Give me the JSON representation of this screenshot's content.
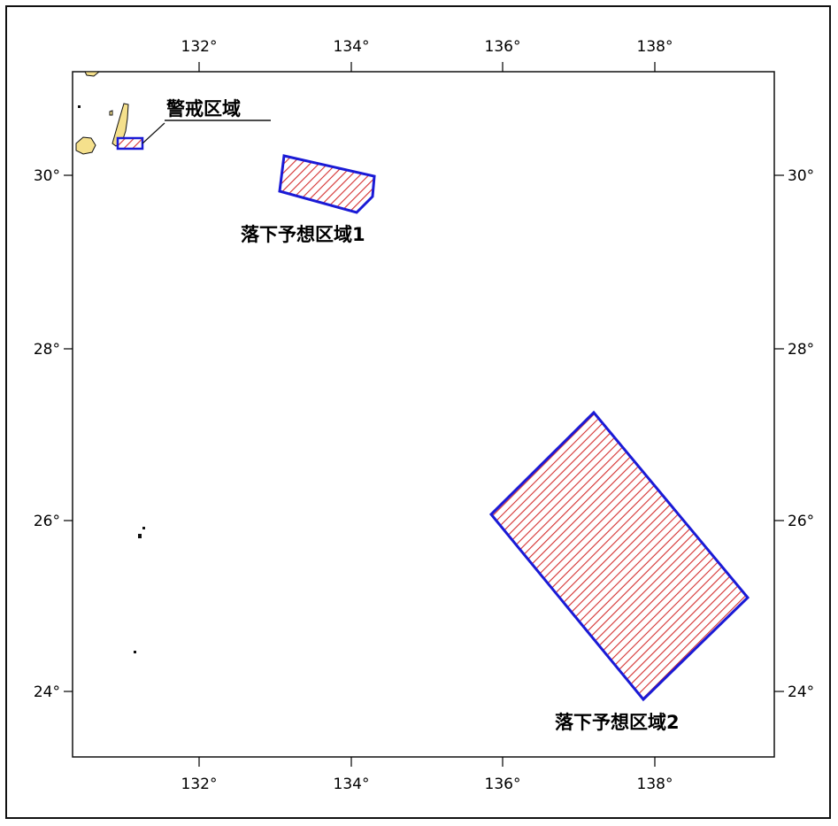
{
  "map": {
    "lon_ticks": [
      "132°",
      "134°",
      "136°",
      "138°"
    ],
    "lat_ticks": [
      "30°",
      "28°",
      "26°",
      "24°"
    ],
    "colors": {
      "land_fill": "#f5e08c",
      "zone_outline": "#1a1ad6",
      "zone_hatch": "#d43030",
      "frame": "#111111"
    },
    "zones": [
      {
        "id": "warning",
        "label": "警戒区域"
      },
      {
        "id": "drop1",
        "label": "落下予想区域1"
      },
      {
        "id": "drop2",
        "label": "落下予想区域2"
      }
    ]
  }
}
